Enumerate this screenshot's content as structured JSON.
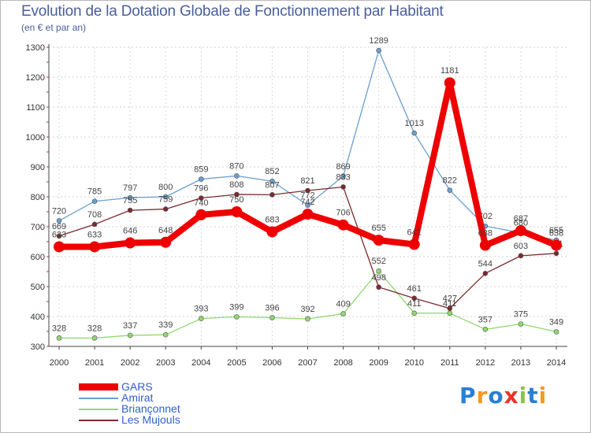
{
  "title": "Evolution de la Dotation Globale de Fonctionnement par Habitant",
  "subtitle": "(en € et par an)",
  "logo": {
    "text": "Proxiti",
    "letters": [
      "P",
      "r",
      "o",
      "x",
      "i",
      "t",
      "i"
    ],
    "colors": [
      "#2a7fd4",
      "#f39a1e",
      "#2a7fd4",
      "#e8332a",
      "#8bc34a",
      "#2a7fd4",
      "#f39a1e"
    ]
  },
  "chart_data": {
    "type": "line",
    "title": "Evolution de la Dotation Globale de Fonctionnement par Habitant",
    "subtitle": "(en € et par an)",
    "x": [
      "2000",
      "2001",
      "2002",
      "2003",
      "2004",
      "2005",
      "2006",
      "2007",
      "2008",
      "2009",
      "2010",
      "2011",
      "2012",
      "2013",
      "2014"
    ],
    "ylim": [
      300,
      1300
    ],
    "yticks": [
      300,
      400,
      500,
      600,
      700,
      800,
      900,
      1000,
      1100,
      1200,
      1300
    ],
    "grid": true,
    "legend_position": "bottom-left",
    "series": [
      {
        "name": "GARS",
        "color": "#ee0000",
        "width": 8,
        "marker": 7,
        "values": [
          633,
          633,
          646,
          648,
          740,
          750,
          683,
          742,
          706,
          655,
          641,
          1181,
          638,
          687,
          638
        ]
      },
      {
        "name": "Amirat",
        "color": "#6a9fcf",
        "width": 1.3,
        "marker": 3,
        "values": [
          720,
          785,
          797,
          800,
          859,
          870,
          852,
          772,
          869,
          1289,
          1013,
          822,
          702,
          680,
          655
        ]
      },
      {
        "name": "Briançonnet",
        "color": "#90d870",
        "width": 1.3,
        "marker": 3,
        "values": [
          328,
          328,
          337,
          339,
          393,
          399,
          396,
          392,
          409,
          552,
          411,
          411,
          357,
          375,
          349
        ]
      },
      {
        "name": "Les Mujouls",
        "color": "#7a2a30",
        "width": 1.3,
        "marker": 3,
        "values": [
          669,
          708,
          755,
          759,
          796,
          808,
          807,
          821,
          833,
          498,
          461,
          427,
          544,
          603,
          611
        ]
      }
    ]
  }
}
